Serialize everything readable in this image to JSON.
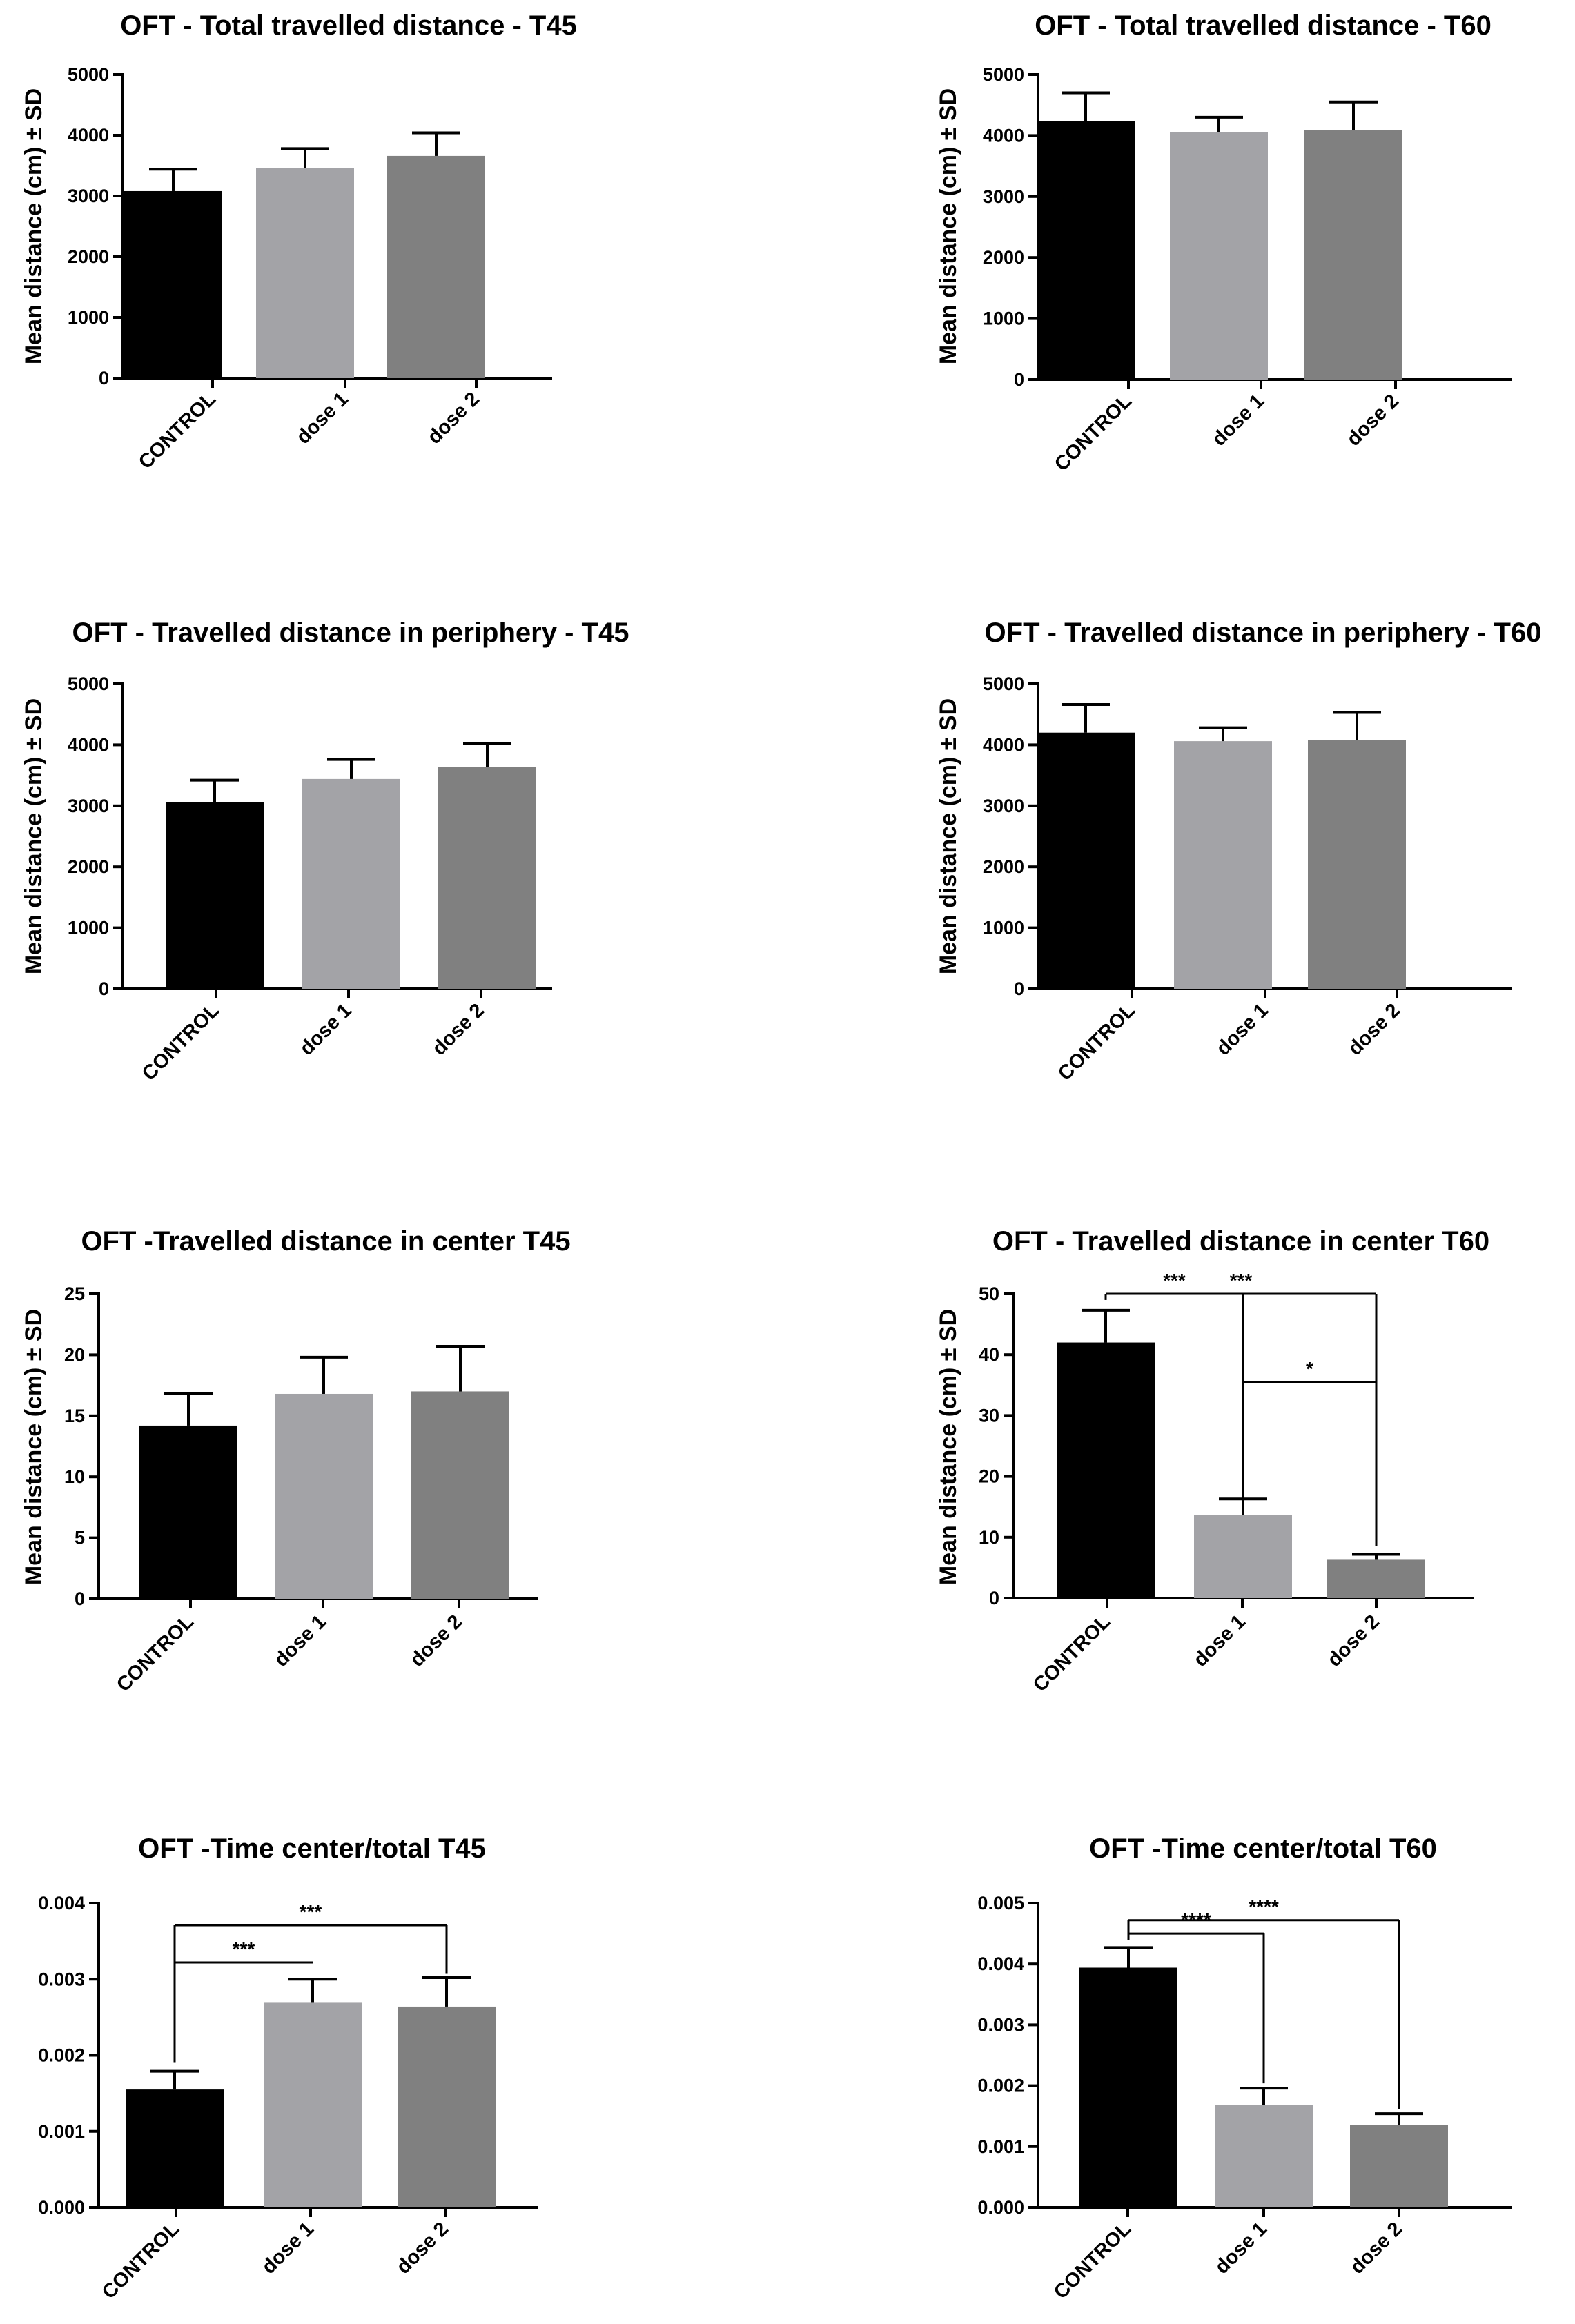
{
  "figure": {
    "colors": {
      "CONTROL": "#000000",
      "dose 1": "#a3a3a7",
      "dose 2": "#808080",
      "axis": "#000000"
    }
  },
  "chart_data": [
    {
      "id": "panel-a",
      "type": "bar",
      "title": "OFT - Total travelled distance - T45",
      "ylabel": "Mean distance (cm) ± SD",
      "categories": [
        "CONTROL",
        "dose 1",
        "dose 2"
      ],
      "values": [
        3080,
        3460,
        3660
      ],
      "errors": [
        360,
        320,
        380
      ],
      "ylim": [
        0,
        5000
      ],
      "yticks": [
        0,
        1000,
        2000,
        3000,
        4000,
        5000
      ],
      "ytick_labels": [
        "0",
        "1000",
        "2000",
        "3000",
        "4000",
        "5000"
      ],
      "significance": []
    },
    {
      "id": "panel-b",
      "type": "bar",
      "title": "OFT - Total travelled distance - T60",
      "ylabel": "Mean distance (cm) ± SD",
      "categories": [
        "CONTROL",
        "dose 1",
        "dose 2"
      ],
      "values": [
        4240,
        4060,
        4090
      ],
      "errors": [
        460,
        240,
        460
      ],
      "ylim": [
        0,
        5000
      ],
      "yticks": [
        0,
        1000,
        2000,
        3000,
        4000,
        5000
      ],
      "ytick_labels": [
        "0",
        "1000",
        "2000",
        "3000",
        "4000",
        "5000"
      ],
      "significance": []
    },
    {
      "id": "panel-c",
      "type": "bar",
      "title": "OFT - Travelled distance in periphery - T45",
      "ylabel": "Mean distance (cm) ± SD",
      "categories": [
        "CONTROL",
        "dose 1",
        "dose 2"
      ],
      "values": [
        3060,
        3440,
        3640
      ],
      "errors": [
        360,
        320,
        380
      ],
      "ylim": [
        0,
        5000
      ],
      "yticks": [
        0,
        1000,
        2000,
        3000,
        4000,
        5000
      ],
      "ytick_labels": [
        "0",
        "1000",
        "2000",
        "3000",
        "4000",
        "5000"
      ],
      "significance": []
    },
    {
      "id": "panel-d",
      "type": "bar",
      "title": "OFT - Travelled distance in periphery - T60",
      "ylabel": "Mean distance (cm) ± SD",
      "categories": [
        "CONTROL",
        "dose 1",
        "dose 2"
      ],
      "values": [
        4200,
        4060,
        4080
      ],
      "errors": [
        460,
        220,
        450
      ],
      "ylim": [
        0,
        5000
      ],
      "yticks": [
        0,
        1000,
        2000,
        3000,
        4000,
        5000
      ],
      "ytick_labels": [
        "0",
        "1000",
        "2000",
        "3000",
        "4000",
        "5000"
      ],
      "significance": []
    },
    {
      "id": "panel-e",
      "type": "bar",
      "title": "OFT -Travelled distance in center T45",
      "ylabel": "Mean distance (cm) ± SD",
      "categories": [
        "CONTROL",
        "dose 1",
        "dose 2"
      ],
      "values": [
        14.2,
        16.8,
        17.0
      ],
      "errors": [
        2.6,
        3.0,
        3.7
      ],
      "ylim": [
        0,
        25
      ],
      "yticks": [
        0,
        5,
        10,
        15,
        20,
        25
      ],
      "ytick_labels": [
        "0",
        "5",
        "10",
        "15",
        "20",
        "25"
      ],
      "significance": []
    },
    {
      "id": "panel-f",
      "type": "bar",
      "title": "OFT - Travelled distance in center T60",
      "ylabel": "Mean distance (cm) ± SD",
      "categories": [
        "CONTROL",
        "dose 1",
        "dose 2"
      ],
      "values": [
        42,
        13.7,
        6.3
      ],
      "errors": [
        5.3,
        2.6,
        0.9
      ],
      "ylim": [
        0,
        50
      ],
      "yticks": [
        0,
        10,
        20,
        30,
        40,
        50
      ],
      "ytick_labels": [
        "0",
        "10",
        "20",
        "30",
        "40",
        "50"
      ],
      "significance": [
        {
          "from": 0,
          "to": 2,
          "label": "***",
          "y": 50,
          "drop_from": 49,
          "drop_to": 8.5
        },
        {
          "from": 0,
          "to": 1,
          "label": "***",
          "y": 50,
          "drop_from": 49,
          "drop_to": 16.5
        },
        {
          "from": 1,
          "to": 2,
          "label": "*",
          "y": 35.5,
          "drop_from": 16.5,
          "drop_to": 30
        }
      ]
    },
    {
      "id": "panel-g",
      "type": "bar",
      "title": "OFT -Time center/total T45",
      "ylabel": "",
      "categories": [
        "CONTROL",
        "dose 1",
        "dose 2"
      ],
      "values": [
        0.00155,
        0.00269,
        0.00264
      ],
      "errors": [
        0.00024,
        0.00031,
        0.00038
      ],
      "ylim": [
        0,
        0.004
      ],
      "yticks": [
        0,
        0.001,
        0.002,
        0.003,
        0.004
      ],
      "ytick_labels": [
        "0.000",
        "0.001",
        "0.002",
        "0.003",
        "0.004"
      ],
      "significance": [
        {
          "from": 0,
          "to": 2,
          "label": "***",
          "y": 0.00371,
          "drop_from": 0.0019,
          "drop_to": 0.00307
        },
        {
          "from": 0,
          "to": 1,
          "label": "***",
          "y": 0.00322,
          "drop_from": null,
          "drop_to": null
        }
      ]
    },
    {
      "id": "panel-h",
      "type": "bar",
      "title": "OFT -Time center/total T60",
      "ylabel": "",
      "categories": [
        "CONTROL",
        "dose 1",
        "dose 2"
      ],
      "values": [
        0.00394,
        0.00168,
        0.00135
      ],
      "errors": [
        0.00033,
        0.00028,
        0.00019
      ],
      "ylim": [
        0,
        0.005
      ],
      "yticks": [
        0,
        0.001,
        0.002,
        0.003,
        0.004,
        0.005
      ],
      "ytick_labels": [
        "0.000",
        "0.001",
        "0.002",
        "0.003",
        "0.004",
        "0.005"
      ],
      "significance": [
        {
          "from": 0,
          "to": 2,
          "label": "****",
          "y": 0.00472,
          "drop_from": 0.0044,
          "drop_to": 0.00162
        },
        {
          "from": 0,
          "to": 1,
          "label": "****",
          "y": 0.0045,
          "drop_from": 0.0044,
          "drop_to": 0.00204
        }
      ]
    }
  ]
}
